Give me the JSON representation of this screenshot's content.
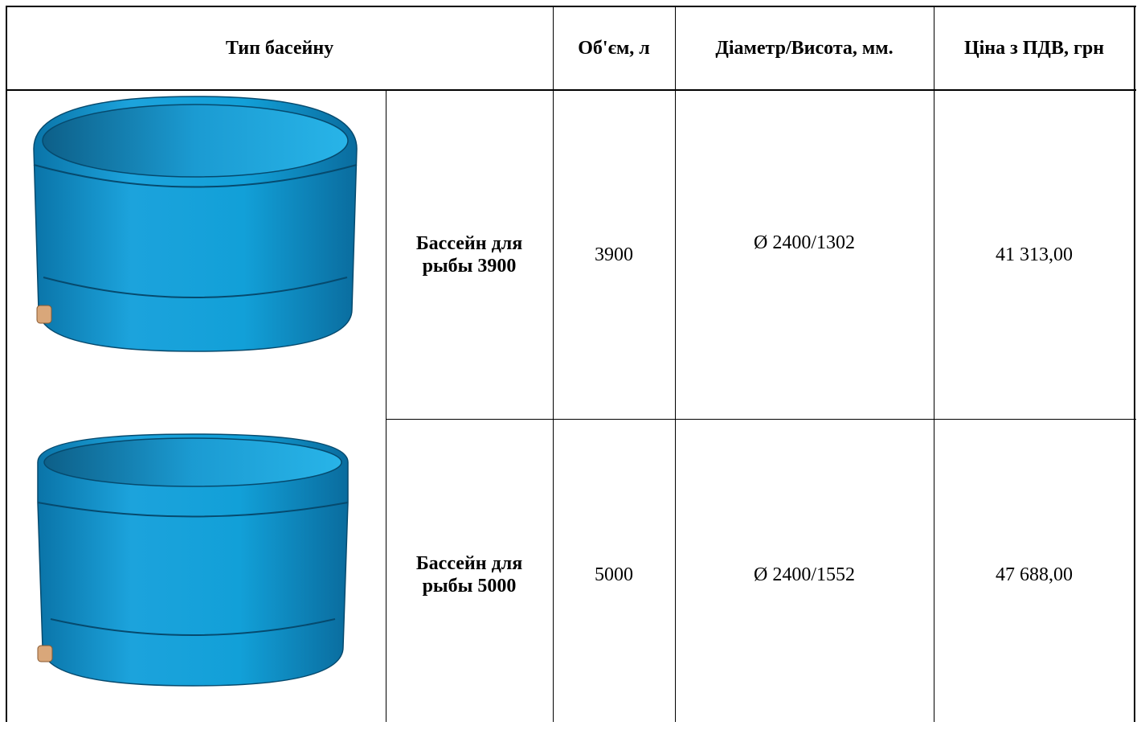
{
  "table": {
    "header": [
      "Тип басейну",
      "Об'єм, л",
      "Діаметр/Висота, мм.",
      "Ціна з ПДВ, грн"
    ],
    "rows": [
      [
        "Бассейн для рыбы 3900",
        "3900",
        "Ø 2400/1302",
        "41 313,00"
      ],
      [
        "Бассейн для рыбы 5000",
        "5000",
        "Ø 2400/1552",
        "47 688,00"
      ]
    ]
  }
}
